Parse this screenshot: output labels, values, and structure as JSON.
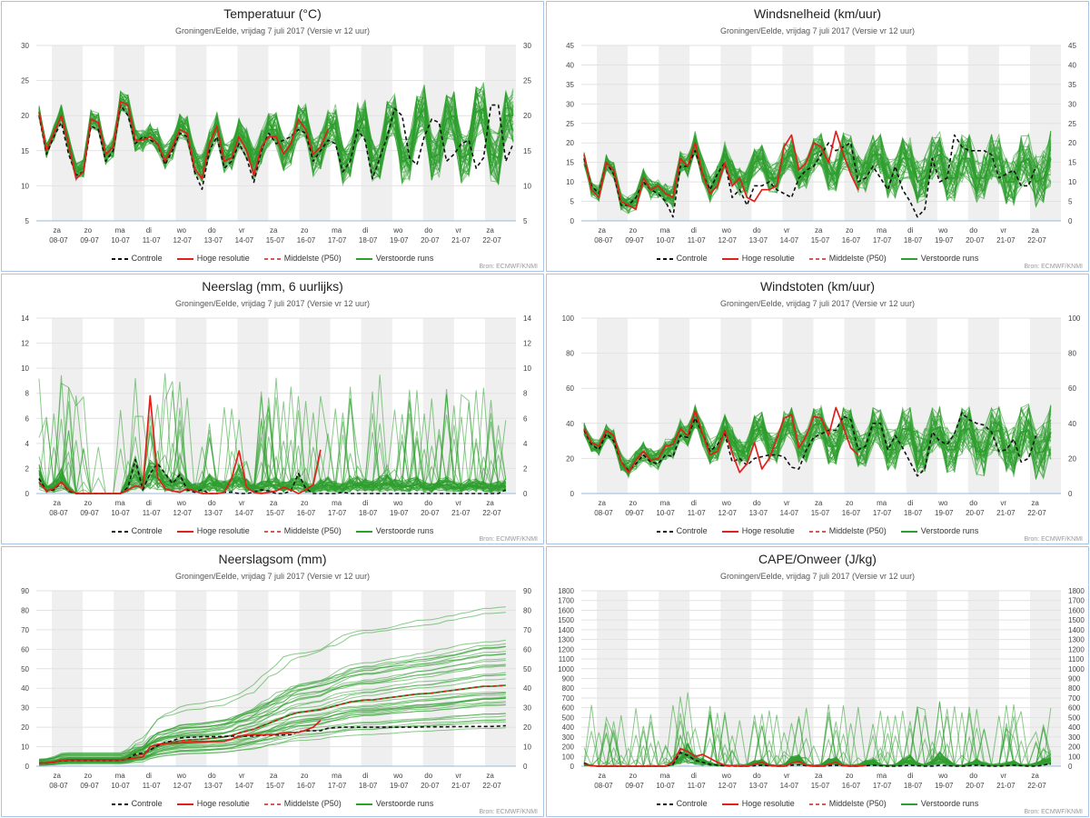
{
  "subtitle": "Groningen/Eelde, vrijdag 7 juli 2017 (Versie vr 12 uur)",
  "source": "Bron: ECMWF/KNMI",
  "legend": {
    "control": "Controle",
    "hires": "Hoge resolutie",
    "median": "Middelste (P50)",
    "ensemble": "Verstoorde runs"
  },
  "colors": {
    "control": "#111111",
    "hires": "#e0201b",
    "median": "#c8201b",
    "ensemble": "#2e9e2e",
    "shade": "#efefef",
    "grid": "#e2e2e2"
  },
  "days": [
    {
      "name": "za",
      "date": "08-07"
    },
    {
      "name": "zo",
      "date": "09-07"
    },
    {
      "name": "ma",
      "date": "10-07"
    },
    {
      "name": "di",
      "date": "11-07"
    },
    {
      "name": "wo",
      "date": "12-07"
    },
    {
      "name": "do",
      "date": "13-07"
    },
    {
      "name": "vr",
      "date": "14-07"
    },
    {
      "name": "za",
      "date": "15-07"
    },
    {
      "name": "zo",
      "date": "16-07"
    },
    {
      "name": "ma",
      "date": "17-07"
    },
    {
      "name": "di",
      "date": "18-07"
    },
    {
      "name": "wo",
      "date": "19-07"
    },
    {
      "name": "do",
      "date": "20-07"
    },
    {
      "name": "vr",
      "date": "21-07"
    },
    {
      "name": "za",
      "date": "22-07"
    }
  ],
  "chart_data": [
    {
      "id": "temp",
      "type": "line",
      "title": "Temperatuur (°C)",
      "xlabel": "",
      "ylabel": "",
      "ylim": [
        5,
        30
      ],
      "yticks": [
        5,
        10,
        15,
        20,
        25,
        30
      ],
      "series": {
        "control": [
          20,
          14.5,
          17,
          19,
          14.5,
          11.5,
          12,
          18.5,
          18,
          13.5,
          15,
          21.5,
          20,
          16,
          17,
          16.5,
          16,
          13,
          15,
          17.5,
          17,
          12,
          9.5,
          15,
          17,
          12.5,
          13.5,
          16,
          14,
          10.5,
          15,
          17.5,
          16,
          16.5,
          17,
          18,
          17.5,
          13.5,
          15,
          16.5,
          16,
          12,
          13.5,
          18,
          16.5,
          11,
          14,
          17,
          21,
          20,
          14,
          13,
          17,
          19.5,
          19,
          13.5,
          14.5,
          16,
          16.5,
          12.5,
          14,
          21.5,
          21.5,
          13.5,
          16
        ],
        "hires": [
          20.5,
          15,
          17.5,
          20,
          16,
          11,
          12,
          19.5,
          19,
          14.5,
          15.5,
          22,
          21.5,
          16.5,
          16.5,
          17,
          16,
          13.5,
          15.5,
          18,
          17.5,
          12.5,
          11,
          16,
          18.5,
          13.5,
          14,
          17,
          15,
          11.5,
          15.5,
          17,
          17,
          14.5,
          16,
          19.5,
          18,
          14.5,
          15.5,
          18
        ]
      },
      "ensemble_base": [
        20.5,
        15,
        17.5,
        20.5,
        16,
        12,
        12.5,
        19.5,
        19,
        14.5,
        15.5,
        22,
        21.5,
        16.5,
        16.5,
        17.5,
        16.5,
        14,
        15.5,
        18.5,
        18,
        13.5,
        12.5,
        16,
        18.5,
        14,
        14.5,
        17.5,
        16,
        13,
        15.5,
        18,
        18,
        14.5,
        15.5,
        19,
        19,
        14,
        15,
        18,
        19,
        13,
        14,
        19,
        19.5,
        13.5,
        14,
        19,
        20,
        13.5,
        14,
        19.5,
        21,
        14,
        14.5,
        19.5,
        20,
        14,
        14.5,
        20.5,
        21,
        14.5,
        14,
        20,
        20
      ]
    },
    {
      "id": "wind",
      "type": "line",
      "title": "Windsnelheid (km/uur)",
      "xlabel": "",
      "ylabel": "",
      "ylim": [
        0,
        45
      ],
      "yticks": [
        0,
        5,
        10,
        15,
        20,
        25,
        30,
        35,
        40,
        45
      ],
      "series": {
        "control": [
          16,
          9,
          7,
          15,
          12,
          4,
          4,
          6,
          10,
          8,
          7,
          5,
          1,
          14,
          14,
          18,
          12,
          8,
          12,
          15,
          6,
          8,
          4,
          9,
          9,
          10,
          8,
          7,
          6,
          11,
          13,
          14,
          17,
          20,
          18,
          19,
          20,
          10,
          11,
          14,
          11,
          8,
          14,
          8,
          5,
          1,
          3,
          16,
          10,
          11,
          22,
          19,
          18,
          18,
          18,
          17,
          11,
          12,
          13,
          9,
          9,
          14
        ],
        "hires": [
          17,
          8,
          6,
          15,
          13,
          5,
          4,
          3,
          11,
          8,
          9,
          7,
          6,
          16,
          14,
          20,
          12,
          7,
          9,
          15,
          9,
          11,
          6,
          5,
          8,
          8,
          9,
          19,
          22,
          13,
          15,
          20,
          19,
          15,
          23,
          17,
          12,
          8
        ]
      },
      "ensemble_base": [
        16,
        8,
        7,
        15,
        13,
        5,
        4,
        5,
        11,
        8,
        8,
        7,
        6,
        15,
        14,
        20,
        13,
        8,
        11,
        17,
        12,
        10,
        10,
        15,
        16,
        11,
        11,
        16,
        17,
        12,
        12,
        17,
        18,
        12,
        12,
        18,
        17,
        12,
        12,
        17,
        17,
        11,
        11,
        16,
        16,
        10,
        11,
        16,
        17,
        11,
        11,
        16,
        16,
        11,
        11,
        16,
        16,
        10,
        10,
        15,
        16,
        10,
        11,
        16
      ]
    },
    {
      "id": "rain",
      "type": "line",
      "title": "Neerslag (mm, 6 uurlijks)",
      "xlabel": "",
      "ylabel": "",
      "ylim": [
        0,
        14
      ],
      "yticks": [
        0,
        2,
        4,
        6,
        8,
        10,
        12,
        14
      ],
      "series": {
        "control": [
          1.2,
          0.2,
          0.3,
          0.9,
          0.2,
          0,
          0,
          0,
          0,
          0,
          0,
          0,
          0.5,
          2.7,
          0.3,
          1.6,
          2.4,
          1.6,
          0.8,
          1.5,
          0.3,
          0.1,
          0.3,
          0,
          0,
          0.1,
          0.1,
          0,
          0,
          0.1,
          0.3,
          0.2,
          0,
          0,
          0.2,
          1.6,
          0.4,
          0,
          0,
          0,
          0,
          0.1,
          0,
          0,
          0,
          0,
          0,
          0,
          0,
          0,
          0,
          0,
          0,
          0,
          0,
          0,
          0,
          0,
          0,
          0,
          0,
          0,
          0,
          0.3
        ],
        "hires": [
          0.9,
          0.2,
          0.4,
          0.9,
          0.3,
          0,
          0,
          0,
          0,
          0,
          0,
          0,
          0.3,
          0.6,
          0.5,
          7.8,
          1.3,
          0.4,
          0.2,
          0.1,
          0.4,
          0.2,
          0,
          0,
          0,
          0.1,
          1.2,
          3.4,
          0.5,
          0.1,
          0,
          0.1,
          0.2,
          0.5,
          0.3,
          0,
          0.3,
          0.7,
          3.5
        ]
      },
      "ensemble_base": [
        1.2,
        0.3,
        0.5,
        1,
        0.3,
        0,
        0,
        0,
        0,
        0,
        0,
        0,
        0.8,
        1.5,
        0.6,
        1.5,
        1.2,
        0.8,
        0.6,
        0.9,
        0.6,
        0.4,
        0.5,
        0.8,
        0.6,
        0.5,
        0.7,
        1.2,
        0.6,
        0.4,
        0.5,
        0.6,
        0.7,
        0.5,
        0.6,
        0.7,
        0.5,
        0.4,
        0.6,
        0.7,
        0.5,
        0.4,
        0.6,
        0.7,
        0.6,
        0.5,
        0.7,
        0.8,
        0.6,
        0.5,
        0.6,
        0.7,
        0.5,
        0.4,
        0.6,
        0.7,
        0.5,
        0.4,
        0.6,
        0.6,
        0.5,
        0.4,
        0.5,
        0.6
      ]
    },
    {
      "id": "gust",
      "type": "line",
      "title": "Windstoten (km/uur)",
      "xlabel": "",
      "ylabel": "",
      "ylim": [
        0,
        100
      ],
      "yticks": [
        0,
        20,
        40,
        60,
        80,
        100
      ],
      "series": {
        "control": [
          36,
          28,
          25,
          34,
          30,
          18,
          13,
          17,
          22,
          18,
          17,
          22,
          21,
          33,
          32,
          43,
          34,
          24,
          28,
          34,
          18,
          20,
          16,
          20,
          21,
          22,
          22,
          21,
          15,
          14,
          25,
          32,
          34,
          36,
          36,
          44,
          42,
          25,
          27,
          40,
          40,
          25,
          33,
          26,
          18,
          10,
          14,
          35,
          30,
          28,
          34,
          46,
          42,
          40,
          39,
          35,
          24,
          25,
          31,
          18,
          20,
          33
        ],
        "hires": [
          37,
          29,
          27,
          36,
          33,
          18,
          12,
          19,
          24,
          19,
          20,
          27,
          28,
          37,
          33,
          47,
          34,
          22,
          24,
          36,
          23,
          12,
          17,
          29,
          14,
          20,
          31,
          43,
          45,
          26,
          33,
          44,
          43,
          33,
          49,
          38,
          26,
          22
        ]
      },
      "ensemble_base": [
        37,
        28,
        26,
        35,
        32,
        18,
        14,
        19,
        24,
        20,
        19,
        25,
        26,
        36,
        33,
        44,
        34,
        24,
        26,
        38,
        30,
        24,
        24,
        36,
        38,
        26,
        26,
        38,
        40,
        27,
        27,
        39,
        40,
        27,
        27,
        40,
        38,
        26,
        26,
        38,
        37,
        25,
        25,
        37,
        37,
        24,
        25,
        36,
        38,
        25,
        25,
        36,
        37,
        24,
        24,
        35,
        36,
        23,
        24,
        35,
        36,
        23,
        24,
        35
      ]
    },
    {
      "id": "raincum",
      "type": "line",
      "title": "Neerslagsom (mm)",
      "xlabel": "",
      "ylabel": "",
      "ylim": [
        0,
        90
      ],
      "yticks": [
        0,
        10,
        20,
        30,
        40,
        50,
        60,
        70,
        80,
        90
      ],
      "series": {
        "control": [
          1.5,
          1.7,
          2,
          2.9,
          3.1,
          3.1,
          3.1,
          3.1,
          3.1,
          3.1,
          3.1,
          3.1,
          3.6,
          6.3,
          6.6,
          8.2,
          10.6,
          12.2,
          13,
          14.5,
          14.8,
          14.9,
          15.2,
          15.2,
          15.2,
          15.3,
          15.4,
          15.4,
          15.4,
          15.5,
          15.8,
          16,
          16,
          16,
          16.2,
          17.8,
          18.2,
          18.2,
          18.2,
          19.5,
          19.8,
          20,
          20,
          20,
          20,
          20,
          20,
          20,
          20,
          20,
          20,
          20,
          20.2,
          20.2,
          20.2,
          20.2,
          20.3,
          20.3,
          20.4,
          20.4,
          20.4,
          20.4,
          20.5,
          20.8
        ],
        "hires": [
          1.5,
          1.7,
          2.1,
          3,
          3.3,
          3.3,
          3.3,
          3.3,
          3.3,
          3.3,
          3.3,
          3.3,
          3.6,
          4.2,
          4.7,
          10,
          11.3,
          11.7,
          11.9,
          12,
          12.4,
          12.6,
          12.6,
          12.6,
          12.6,
          12.7,
          13.9,
          15.5,
          16,
          16.1,
          16.1,
          16.2,
          16.4,
          17,
          17.3,
          17.3,
          18.5,
          20,
          23.5
        ],
        "median": [
          1.6,
          1.8,
          2.2,
          3,
          3.2,
          3.2,
          3.2,
          3.2,
          3.2,
          3.2,
          3.2,
          3.2,
          4,
          5.5,
          6.2,
          8.5,
          10.5,
          11.5,
          12.2,
          13,
          13.4,
          13.6,
          13.8,
          14.2,
          14.6,
          15,
          15.8,
          17,
          18,
          19,
          20.5,
          22,
          23.5,
          25,
          26.5,
          27.5,
          28,
          28.5,
          29,
          30,
          31,
          32,
          33,
          33.5,
          34,
          34,
          34.5,
          35,
          35.5,
          36,
          36.5,
          37,
          37.2,
          37.5,
          38,
          38.5,
          39,
          39.5,
          40,
          40.5,
          41,
          41,
          41.2,
          41.5
        ]
      },
      "ensemble_base": [
        1.6,
        1.8,
        2.2,
        3,
        3.2,
        3.2,
        3.2,
        3.2,
        3.2,
        3.2,
        3.2,
        3.2,
        4,
        5.5,
        6.2,
        8.5,
        10.5,
        11.5,
        12.2,
        13,
        13.4,
        13.6,
        13.8,
        14.2,
        14.6,
        15,
        15.8,
        17,
        18,
        19,
        20.5,
        22,
        23.5,
        25,
        26.5,
        27.5,
        28,
        28.5,
        29,
        30,
        31,
        32,
        33,
        33.5,
        34,
        34,
        34.5,
        35,
        35.5,
        36,
        36.5,
        37,
        37.2,
        37.5,
        38,
        38.5,
        39,
        39.5,
        40,
        40.5,
        41,
        41,
        41.2,
        41.5
      ]
    },
    {
      "id": "cape",
      "type": "line",
      "title": "CAPE/Onweer (J/kg)",
      "xlabel": "",
      "ylabel": "",
      "ylim": [
        0,
        1800
      ],
      "yticks": [
        0,
        100,
        200,
        300,
        400,
        500,
        600,
        700,
        800,
        900,
        1000,
        1100,
        1200,
        1300,
        1400,
        1500,
        1600,
        1700,
        1800
      ],
      "series": {
        "control": [
          30,
          5,
          0,
          0,
          0,
          0,
          0,
          0,
          0,
          0,
          0,
          0,
          20,
          140,
          110,
          60,
          40,
          20,
          10,
          5,
          0,
          0,
          0,
          5,
          10,
          5,
          0,
          0,
          10,
          15,
          5,
          0,
          0,
          5,
          10,
          5,
          0,
          0,
          5,
          10,
          5,
          0,
          0,
          5,
          10,
          5,
          0,
          0,
          10,
          5,
          0,
          0,
          5,
          10,
          5,
          0,
          0,
          5,
          10,
          5,
          0,
          0,
          10,
          30
        ],
        "hires": [
          20,
          5,
          0,
          0,
          0,
          0,
          0,
          0,
          0,
          0,
          0,
          0,
          40,
          180,
          150,
          100,
          120,
          80,
          40,
          10,
          5,
          0,
          0,
          20,
          40,
          10,
          0,
          0,
          30,
          50,
          10,
          0,
          0,
          20,
          40,
          5,
          0,
          0,
          10
        ]
      },
      "ensemble_base": [
        20,
        5,
        0,
        0,
        0,
        0,
        0,
        0,
        0,
        0,
        0,
        0,
        30,
        80,
        120,
        60,
        40,
        20,
        10,
        5,
        5,
        5,
        10,
        30,
        40,
        10,
        5,
        10,
        50,
        60,
        10,
        5,
        10,
        40,
        50,
        10,
        5,
        10,
        30,
        40,
        10,
        5,
        10,
        40,
        60,
        20,
        10,
        30,
        80,
        40,
        10,
        5,
        20,
        40,
        20,
        10,
        10,
        20,
        30,
        10,
        10,
        20,
        40,
        60
      ]
    }
  ]
}
